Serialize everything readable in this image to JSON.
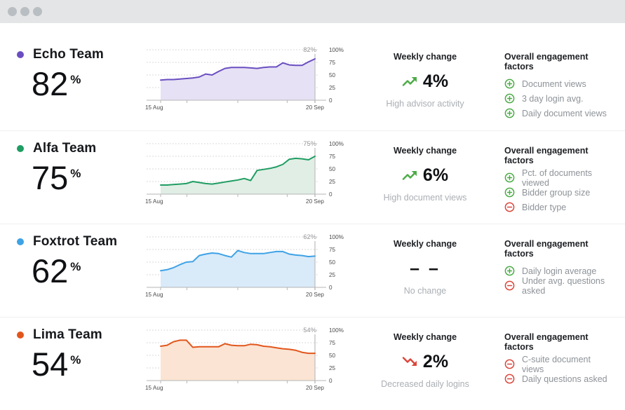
{
  "titlebar": {
    "dot_count": 3
  },
  "labels": {
    "weekly_change_header": "Weekly change",
    "factors_header": "Overall engagement factors"
  },
  "colors": {
    "positive": "#4cab46",
    "negative": "#dc463a"
  },
  "teams": [
    {
      "name": "Echo Team",
      "score": "82",
      "score_unit": "%",
      "color": "#6a4ec1",
      "fill": "#e6e1f4",
      "weekly_change": {
        "value": "4%",
        "direction": "up",
        "caption": "High advisor activity"
      },
      "factors": [
        {
          "sign": "plus",
          "label": "Document views"
        },
        {
          "sign": "plus",
          "label": "3 day login avg."
        },
        {
          "sign": "plus",
          "label": "Daily document views"
        }
      ]
    },
    {
      "name": "Alfa Team",
      "score": "75",
      "score_unit": "%",
      "color": "#1f9d62",
      "fill": "#e0eee5",
      "weekly_change": {
        "value": "6%",
        "direction": "up",
        "caption": "High document views"
      },
      "factors": [
        {
          "sign": "plus",
          "label": "Pct. of documents viewed"
        },
        {
          "sign": "plus",
          "label": "Bidder group size"
        },
        {
          "sign": "minus",
          "label": "Bidder type"
        }
      ]
    },
    {
      "name": "Foxtrot Team",
      "score": "62",
      "score_unit": "%",
      "color": "#3ea2e5",
      "fill": "#d9eaf9",
      "weekly_change": {
        "value": "– –",
        "direction": "none",
        "caption": "No change"
      },
      "factors": [
        {
          "sign": "plus",
          "label": "Daily login average"
        },
        {
          "sign": "minus",
          "label": "Under avg. questions asked"
        }
      ]
    },
    {
      "name": "Lima Team",
      "score": "54",
      "score_unit": "%",
      "color": "#e2561d",
      "fill": "#fbe4d3",
      "weekly_change": {
        "value": "2%",
        "direction": "down",
        "caption": "Decreased daily logins"
      },
      "factors": [
        {
          "sign": "minus",
          "label": "C-suite document views"
        },
        {
          "sign": "minus",
          "label": "Daily questions asked"
        }
      ]
    }
  ],
  "chart_data": [
    {
      "type": "area",
      "title": "Echo Team engagement trend",
      "x_range": [
        "15 Aug",
        "20 Sep"
      ],
      "ylim": [
        0,
        100
      ],
      "y_tick_labels": [
        "100%",
        "75",
        "50",
        "25",
        "0"
      ],
      "end_label": "82%",
      "values": [
        40,
        41,
        41,
        42,
        43,
        44,
        46,
        52,
        50,
        57,
        63,
        65,
        65,
        65,
        64,
        63,
        65,
        66,
        66,
        74,
        70,
        69,
        69,
        76,
        82
      ]
    },
    {
      "type": "area",
      "title": "Alfa Team engagement trend",
      "x_range": [
        "15 Aug",
        "20 Sep"
      ],
      "ylim": [
        0,
        100
      ],
      "y_tick_labels": [
        "100%",
        "75",
        "50",
        "25",
        "0"
      ],
      "end_label": "75%",
      "values": [
        18,
        18,
        19,
        20,
        21,
        25,
        23,
        21,
        20,
        22,
        24,
        26,
        28,
        31,
        27,
        47,
        49,
        51,
        54,
        59,
        69,
        71,
        70,
        68,
        75
      ]
    },
    {
      "type": "area",
      "title": "Foxtrot Team engagement trend",
      "x_range": [
        "15 Aug",
        "20 Sep"
      ],
      "ylim": [
        0,
        100
      ],
      "y_tick_labels": [
        "100%",
        "75",
        "50",
        "25",
        "0"
      ],
      "end_label": "62%",
      "values": [
        33,
        35,
        39,
        45,
        50,
        51,
        63,
        66,
        68,
        67,
        63,
        60,
        73,
        69,
        67,
        67,
        67,
        69,
        71,
        71,
        66,
        64,
        63,
        61,
        62
      ]
    },
    {
      "type": "area",
      "title": "Lima Team engagement trend",
      "x_range": [
        "15 Aug",
        "20 Sep"
      ],
      "ylim": [
        0,
        100
      ],
      "y_tick_labels": [
        "100%",
        "75",
        "50",
        "25",
        "0"
      ],
      "end_label": "54%",
      "values": [
        68,
        70,
        77,
        80,
        80,
        66,
        67,
        67,
        67,
        67,
        73,
        70,
        69,
        69,
        72,
        71,
        68,
        67,
        65,
        63,
        62,
        60,
        56,
        54,
        54
      ]
    }
  ]
}
